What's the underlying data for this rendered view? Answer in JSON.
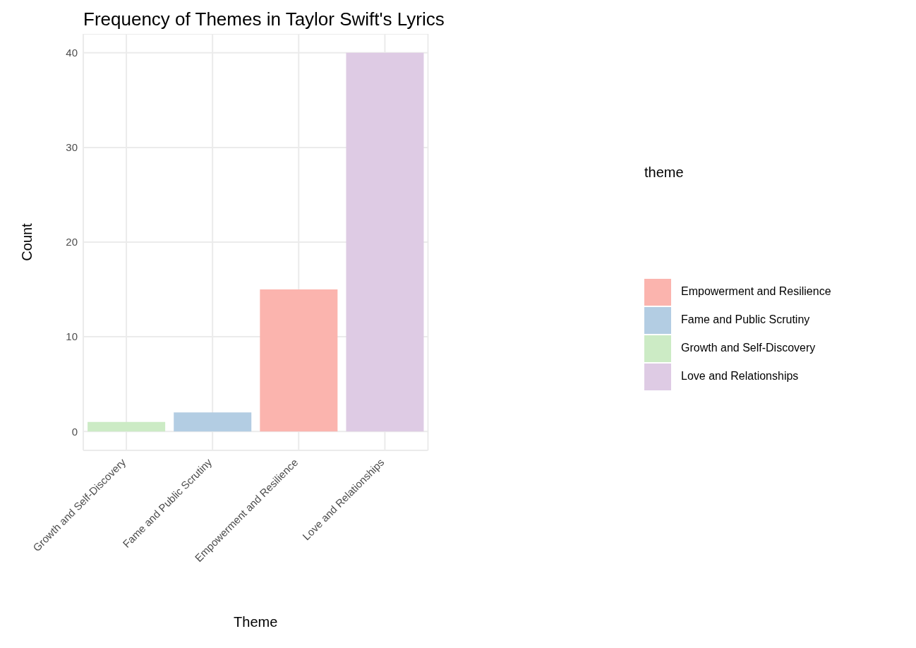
{
  "chart_data": {
    "type": "bar",
    "title": "Frequency of Themes in Taylor Swift's Lyrics",
    "xlabel": "Theme",
    "ylabel": "Count",
    "legend_title": "theme",
    "categories": [
      "Growth and Self-Discovery",
      "Fame and Public Scrutiny",
      "Empowerment and Resilience",
      "Love and Relationships"
    ],
    "series": [
      {
        "name": "Empowerment and Resilience",
        "color": "#fbb4ae",
        "values": [
          null,
          null,
          15,
          null
        ]
      },
      {
        "name": "Fame and Public Scrutiny",
        "color": "#b3cde3",
        "values": [
          null,
          2,
          null,
          null
        ]
      },
      {
        "name": "Growth and Self-Discovery",
        "color": "#ccebc5",
        "values": [
          1,
          null,
          null,
          null
        ]
      },
      {
        "name": "Love and Relationships",
        "color": "#decbe4",
        "values": [
          null,
          null,
          null,
          40
        ]
      }
    ],
    "stacked": true,
    "ylim": [
      -2,
      42
    ],
    "yticks": [
      0,
      10,
      20,
      30,
      40
    ],
    "grid": true,
    "legend": "right"
  }
}
